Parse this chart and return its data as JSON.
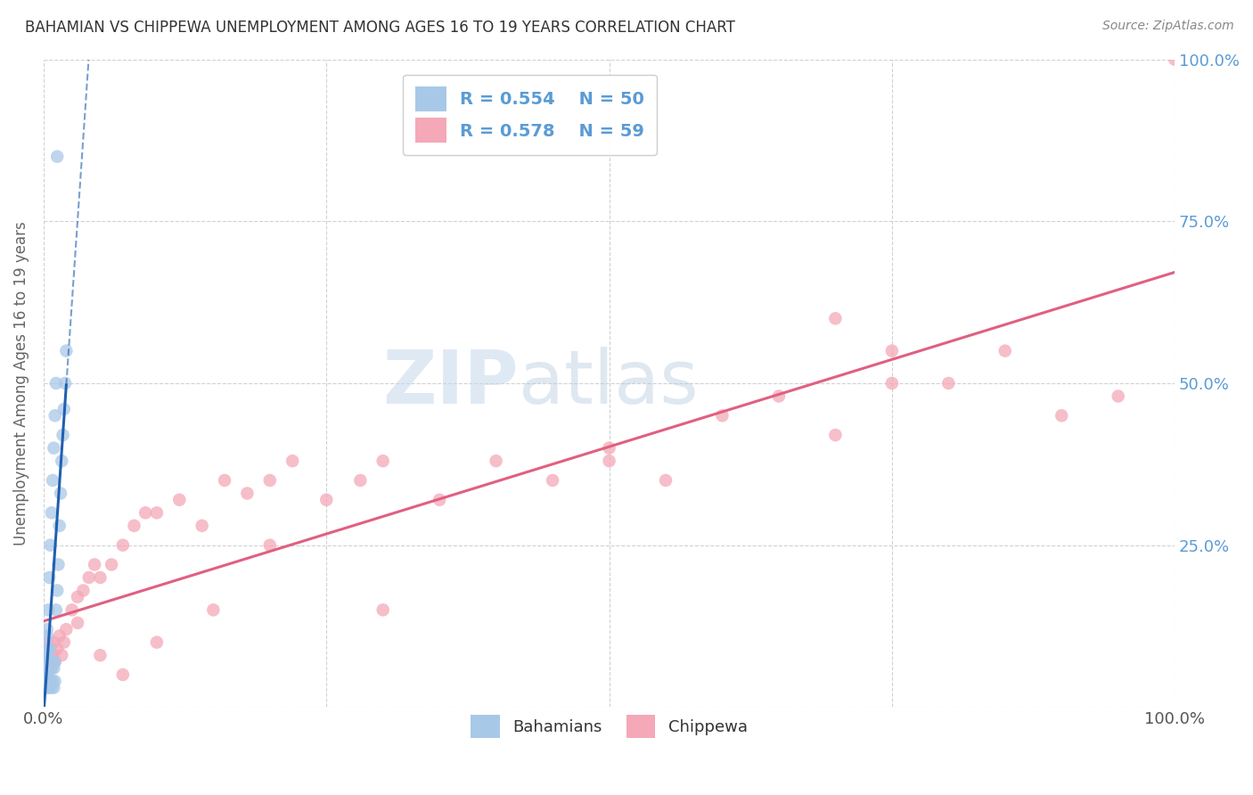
{
  "title": "BAHAMIAN VS CHIPPEWA UNEMPLOYMENT AMONG AGES 16 TO 19 YEARS CORRELATION CHART",
  "source": "Source: ZipAtlas.com",
  "ylabel": "Unemployment Among Ages 16 to 19 years",
  "xlim": [
    0.0,
    1.0
  ],
  "ylim": [
    0.0,
    1.0
  ],
  "xticks": [
    0.0,
    0.25,
    0.5,
    0.75,
    1.0
  ],
  "xticklabels": [
    "0.0%",
    "",
    "",
    "",
    "100.0%"
  ],
  "yticks": [
    0.0,
    0.25,
    0.5,
    0.75,
    1.0
  ],
  "yticklabels_right": [
    "",
    "25.0%",
    "50.0%",
    "75.0%",
    "100.0%"
  ],
  "bahamian_color": "#a8c8e8",
  "chippewa_color": "#f4a8b8",
  "bahamian_R": 0.554,
  "bahamian_N": 50,
  "chippewa_R": 0.578,
  "chippewa_N": 59,
  "bahamian_line_color": "#2060b0",
  "chippewa_line_color": "#e06080",
  "watermark_zip": "ZIP",
  "watermark_atlas": "atlas",
  "background_color": "#ffffff",
  "legend_color": "#5b9bd5",
  "ylabel_color": "#666666",
  "tick_color": "#5b9bd5",
  "bahamian_x": [
    0.0005,
    0.001,
    0.001,
    0.0015,
    0.0015,
    0.002,
    0.002,
    0.002,
    0.0025,
    0.0025,
    0.003,
    0.003,
    0.003,
    0.003,
    0.004,
    0.004,
    0.004,
    0.005,
    0.005,
    0.005,
    0.006,
    0.006,
    0.007,
    0.007,
    0.008,
    0.008,
    0.009,
    0.009,
    0.01,
    0.01,
    0.011,
    0.012,
    0.013,
    0.014,
    0.015,
    0.016,
    0.017,
    0.018,
    0.019,
    0.02,
    0.003,
    0.004,
    0.005,
    0.006,
    0.007,
    0.008,
    0.009,
    0.01,
    0.011,
    0.012
  ],
  "bahamian_y": [
    0.03,
    0.05,
    0.08,
    0.04,
    0.07,
    0.03,
    0.06,
    0.09,
    0.04,
    0.07,
    0.03,
    0.05,
    0.08,
    0.11,
    0.04,
    0.06,
    0.09,
    0.03,
    0.06,
    0.09,
    0.04,
    0.07,
    0.03,
    0.06,
    0.04,
    0.07,
    0.03,
    0.06,
    0.04,
    0.07,
    0.15,
    0.18,
    0.22,
    0.28,
    0.33,
    0.38,
    0.42,
    0.46,
    0.5,
    0.55,
    0.12,
    0.15,
    0.2,
    0.25,
    0.3,
    0.35,
    0.4,
    0.45,
    0.5,
    0.85
  ],
  "chippewa_x": [
    0.001,
    0.002,
    0.003,
    0.004,
    0.005,
    0.006,
    0.007,
    0.008,
    0.009,
    0.01,
    0.012,
    0.014,
    0.016,
    0.018,
    0.02,
    0.025,
    0.03,
    0.035,
    0.04,
    0.045,
    0.05,
    0.06,
    0.07,
    0.08,
    0.09,
    0.1,
    0.12,
    0.14,
    0.16,
    0.18,
    0.2,
    0.22,
    0.25,
    0.28,
    0.3,
    0.35,
    0.4,
    0.45,
    0.5,
    0.55,
    0.6,
    0.65,
    0.7,
    0.75,
    0.8,
    0.85,
    0.9,
    0.95,
    1.0,
    0.75,
    0.03,
    0.05,
    0.07,
    0.1,
    0.15,
    0.2,
    0.3,
    0.5,
    0.7
  ],
  "chippewa_y": [
    0.05,
    0.08,
    0.06,
    0.1,
    0.07,
    0.09,
    0.06,
    0.08,
    0.1,
    0.07,
    0.09,
    0.11,
    0.08,
    0.1,
    0.12,
    0.15,
    0.17,
    0.18,
    0.2,
    0.22,
    0.2,
    0.22,
    0.25,
    0.28,
    0.3,
    0.3,
    0.32,
    0.28,
    0.35,
    0.33,
    0.35,
    0.38,
    0.32,
    0.35,
    0.38,
    0.32,
    0.38,
    0.35,
    0.4,
    0.35,
    0.45,
    0.48,
    0.42,
    0.5,
    0.5,
    0.55,
    0.45,
    0.48,
    1.0,
    0.55,
    0.13,
    0.08,
    0.05,
    0.1,
    0.15,
    0.25,
    0.15,
    0.38,
    0.6
  ]
}
